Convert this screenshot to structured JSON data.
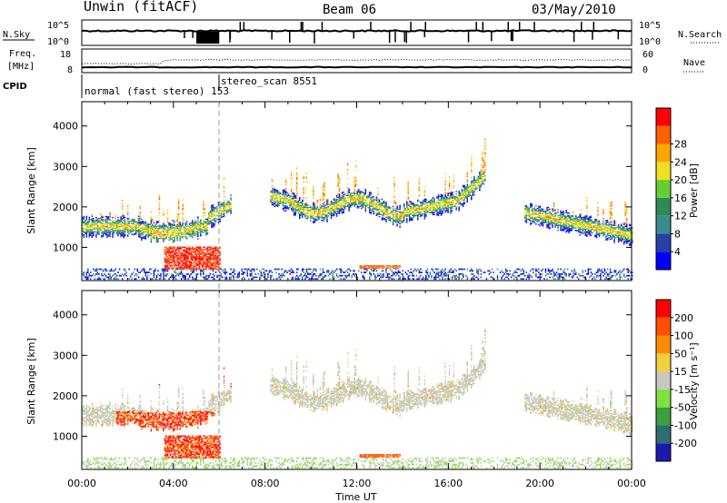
{
  "header": {
    "station": "Unwin (fitACF)",
    "beam": "Beam 06",
    "date": "03/May/2010"
  },
  "strips": {
    "nsky_label": "N.Sky",
    "nsearch_label": "N.Search",
    "nsky_ticks": [
      "10^5",
      "10^0"
    ],
    "nsearch_ticks": [
      "10^5",
      "10^0"
    ],
    "freq_label_top": "Freq.",
    "freq_label_unit": "[MHz]",
    "freq_ticks": [
      "18",
      "8"
    ],
    "nave_label": "Nave",
    "nave_ticks": [
      "60",
      "0"
    ],
    "cpid_label": "CPID",
    "cpid_segments": [
      {
        "name": "normal (fast stereo) 153",
        "start_h": 0,
        "end_h": 6
      },
      {
        "name": "stereo_scan 8551",
        "start_h": 6,
        "end_h": 24
      }
    ]
  },
  "chart_data": [
    {
      "type": "heatmap",
      "panel": "power",
      "xlabel": "",
      "ylabel": "Slant Range [km]",
      "xlim": [
        0,
        24
      ],
      "ylim": [
        180,
        4600
      ],
      "y_ticks": [
        1000,
        2000,
        3000,
        4000
      ],
      "colorbar_label": "Power [dB]",
      "colorbar_ticks": [
        "4",
        "8",
        "12",
        "16",
        "20",
        "24",
        "28"
      ],
      "colorbar_colors": [
        "#0000ff",
        "#2a3fa5",
        "#3a8c8c",
        "#2e8b57",
        "#66cc33",
        "#f0e020",
        "#ffa500",
        "#ff6000",
        "#ff0000"
      ]
    },
    {
      "type": "heatmap",
      "panel": "velocity",
      "xlabel": "Time UT",
      "ylabel": "Slant Range [km]",
      "xlim": [
        0,
        24
      ],
      "ylim": [
        180,
        4600
      ],
      "x_ticks": [
        "00:00",
        "04:00",
        "08:00",
        "12:00",
        "16:00",
        "20:00",
        "00:00"
      ],
      "y_ticks": [
        1000,
        2000,
        3000,
        4000
      ],
      "colorbar_label": "Velocity [m s⁻¹]",
      "colorbar_ticks": [
        "200",
        "100",
        "50",
        "15",
        "-15",
        "-50",
        "-100",
        "-200"
      ],
      "colorbar_colors": [
        "#1a1ab0",
        "#2e6e6e",
        "#3ca040",
        "#80e040",
        "#c8c8c0",
        "#f0d040",
        "#ff8c00",
        "#ff5000",
        "#ff0000"
      ]
    }
  ]
}
